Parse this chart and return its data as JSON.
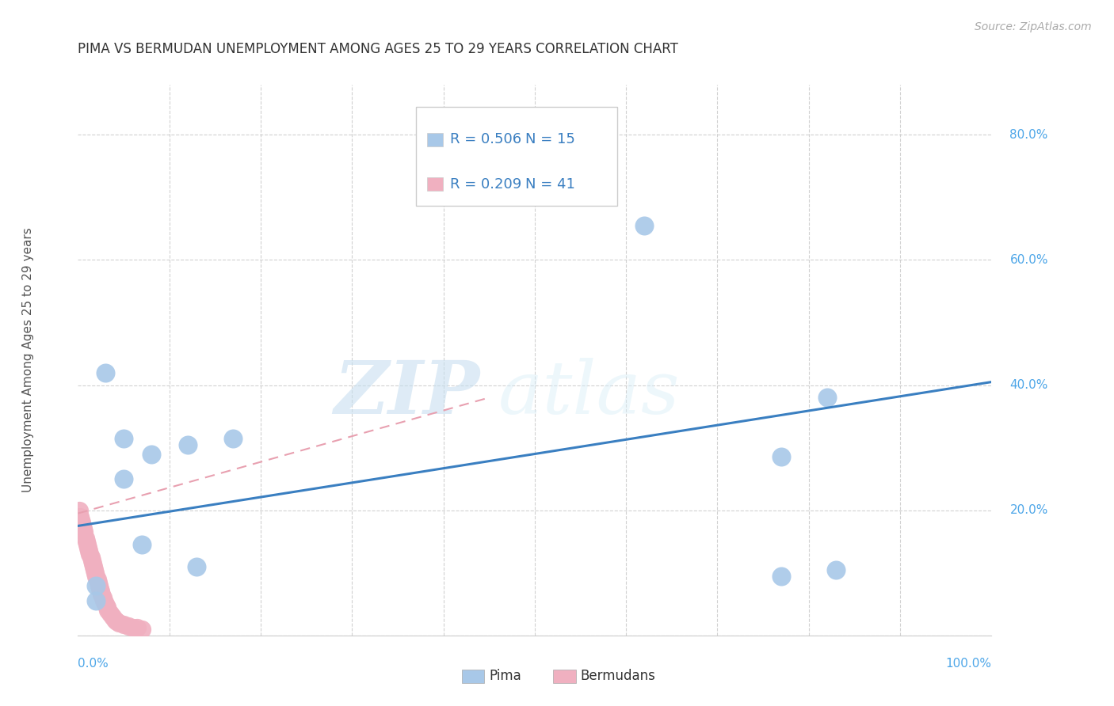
{
  "title": "PIMA VS BERMUDAN UNEMPLOYMENT AMONG AGES 25 TO 29 YEARS CORRELATION CHART",
  "source": "Source: ZipAtlas.com",
  "ylabel": "Unemployment Among Ages 25 to 29 years",
  "xlim": [
    0.0,
    1.0
  ],
  "ylim": [
    0.0,
    0.88
  ],
  "yticks": [
    0.0,
    0.2,
    0.4,
    0.6,
    0.8
  ],
  "ytick_labels": [
    "0.0%",
    "20.0%",
    "40.0%",
    "60.0%",
    "80.0%"
  ],
  "x_left_label": "0.0%",
  "x_right_label": "100.0%",
  "background_color": "#ffffff",
  "pima_color": "#a8c8e8",
  "bermudans_color": "#f0b0c0",
  "pima_edge_color": "#a8c8e8",
  "bermudans_edge_color": "#f0b0c0",
  "pima_R": 0.506,
  "pima_N": 15,
  "bermudans_R": 0.209,
  "bermudans_N": 41,
  "pima_line_color": "#3a7fc1",
  "bermudans_line_color": "#e8a0b0",
  "legend_text_color": "#3a7fc1",
  "watermark_zip": "ZIP",
  "watermark_atlas": "atlas",
  "pima_x": [
    0.03,
    0.05,
    0.08,
    0.12,
    0.13,
    0.17,
    0.62,
    0.77,
    0.77,
    0.82,
    0.83,
    0.02,
    0.02,
    0.07,
    0.05
  ],
  "pima_y": [
    0.42,
    0.315,
    0.29,
    0.305,
    0.11,
    0.315,
    0.655,
    0.285,
    0.095,
    0.38,
    0.105,
    0.08,
    0.055,
    0.145,
    0.25
  ],
  "bermudans_x": [
    0.002,
    0.003,
    0.004,
    0.005,
    0.006,
    0.007,
    0.008,
    0.009,
    0.01,
    0.011,
    0.012,
    0.013,
    0.014,
    0.015,
    0.016,
    0.017,
    0.018,
    0.019,
    0.02,
    0.021,
    0.022,
    0.023,
    0.024,
    0.025,
    0.026,
    0.027,
    0.028,
    0.03,
    0.032,
    0.033,
    0.035,
    0.038,
    0.04,
    0.042,
    0.045,
    0.05,
    0.055,
    0.06,
    0.065,
    0.07,
    0.001
  ],
  "bermudans_y": [
    0.19,
    0.185,
    0.18,
    0.175,
    0.17,
    0.165,
    0.155,
    0.15,
    0.145,
    0.14,
    0.135,
    0.13,
    0.125,
    0.12,
    0.115,
    0.11,
    0.105,
    0.1,
    0.095,
    0.09,
    0.085,
    0.08,
    0.075,
    0.07,
    0.065,
    0.06,
    0.055,
    0.05,
    0.045,
    0.04,
    0.035,
    0.03,
    0.025,
    0.022,
    0.02,
    0.018,
    0.015,
    0.013,
    0.012,
    0.01,
    0.2
  ],
  "pima_trend_x": [
    0.0,
    1.0
  ],
  "pima_trend_y": [
    0.175,
    0.405
  ],
  "bermudans_trend_x": [
    0.0,
    0.45
  ],
  "bermudans_trend_y": [
    0.195,
    0.38
  ],
  "grid_color": "#cccccc",
  "grid_x_positions": [
    0.1,
    0.2,
    0.3,
    0.4,
    0.5,
    0.6,
    0.7,
    0.8,
    0.9
  ]
}
